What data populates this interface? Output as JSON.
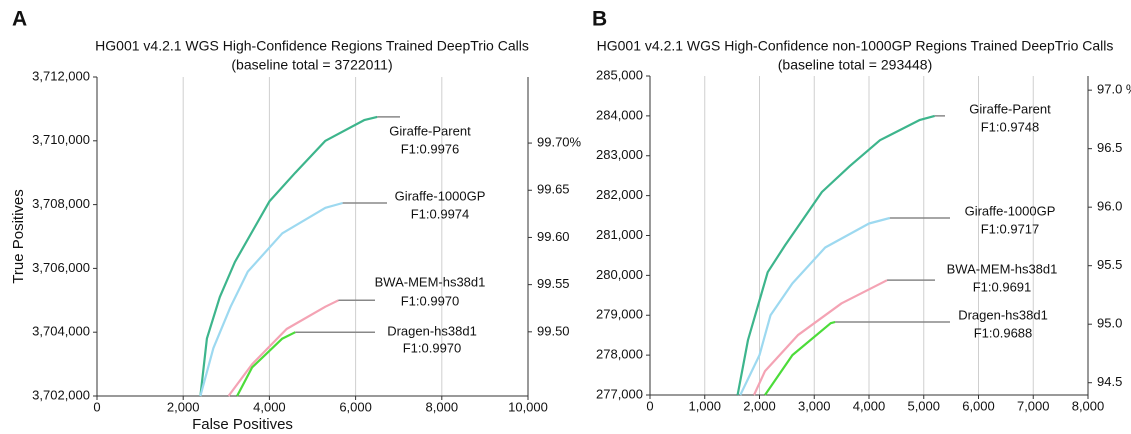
{
  "chart_data": [
    {
      "type": "line",
      "panel": "A",
      "title": "HG001 v4.2.1 WGS High-Confidence Regions Trained DeepTrio Calls",
      "subtitle": "(baseline total = 3722011)",
      "xlabel": "False Positives",
      "ylabel": "True Positives",
      "xlim": [
        0,
        10000
      ],
      "ylim": [
        3702000,
        3712000
      ],
      "y2lim": [
        99.432,
        99.77
      ],
      "xticks": [
        0,
        {
          "value": 2000,
          "label": "2,000"
        },
        {
          "value": 4000,
          "label": "4,000"
        },
        {
          "value": 6000,
          "label": "6,000"
        },
        {
          "value": 8000,
          "label": "8,000"
        },
        {
          "value": 10000,
          "label": "10,000"
        }
      ],
      "yticks": [
        {
          "value": 3702000,
          "label": "3,702,000"
        },
        {
          "value": 3704000,
          "label": "3,704,000"
        },
        {
          "value": 3706000,
          "label": "3,706,000"
        },
        {
          "value": 3708000,
          "label": "3,708,000"
        },
        {
          "value": 3710000,
          "label": "3,710,000"
        },
        {
          "value": 3712000,
          "label": "3,712,000"
        }
      ],
      "y2ticks": [
        {
          "value": 99.5,
          "label": "99.50"
        },
        {
          "value": 99.55,
          "label": "99.55"
        },
        {
          "value": 99.6,
          "label": "99.60"
        },
        {
          "value": 99.65,
          "label": "99.65"
        },
        {
          "value": 99.7,
          "label": "99.70%"
        }
      ],
      "grid": "x",
      "series": [
        {
          "name": "Giraffe-Parent",
          "label": "F1:0.9976",
          "color": "#3db58c",
          "x": [
            2400,
            2550,
            2850,
            3200,
            4000,
            4600,
            5300,
            6200,
            6500
          ],
          "y": [
            3702000,
            3703800,
            3705100,
            3706200,
            3708100,
            3709000,
            3710000,
            3710650,
            3710750
          ]
        },
        {
          "name": "Giraffe-1000GP",
          "label": "F1:0.9974",
          "color": "#9dd9f0",
          "x": [
            2400,
            2700,
            3100,
            3500,
            4300,
            5300,
            5700
          ],
          "y": [
            3702000,
            3703500,
            3704800,
            3705900,
            3707100,
            3707900,
            3708050
          ]
        },
        {
          "name": "BWA-MEM-hs38d1",
          "label": "F1:0.9970",
          "color": "#f4a3b4",
          "x": [
            3050,
            3600,
            4400,
            5300,
            5600
          ],
          "y": [
            3702000,
            3703000,
            3704100,
            3704800,
            3705000
          ]
        },
        {
          "name": "Dragen-hs38d1",
          "label": "F1:0.9970",
          "color": "#4cdc3a",
          "x": [
            3250,
            3600,
            4300,
            4600
          ],
          "y": [
            3702000,
            3702900,
            3703800,
            3704000
          ]
        }
      ]
    },
    {
      "type": "line",
      "panel": "B",
      "title": "HG001 v4.2.1 WGS High-Confidence non-1000GP Regions Trained DeepTrio Calls",
      "subtitle": "(baseline total = 293448)",
      "xlim": [
        0,
        8000
      ],
      "ylim": [
        277000,
        285000
      ],
      "y2lim": [
        94.395,
        97.121
      ],
      "xticks": [
        0,
        {
          "value": 1000,
          "label": "1,000"
        },
        {
          "value": 2000,
          "label": "2,000"
        },
        {
          "value": 3000,
          "label": "3,000"
        },
        {
          "value": 4000,
          "label": "4,000"
        },
        {
          "value": 5000,
          "label": "5,000"
        },
        {
          "value": 6000,
          "label": "6,000"
        },
        {
          "value": 7000,
          "label": "7,000"
        },
        {
          "value": 8000,
          "label": "8,000"
        }
      ],
      "yticks": [
        {
          "value": 277000,
          "label": "277,000"
        },
        {
          "value": 278000,
          "label": "278,000"
        },
        {
          "value": 279000,
          "label": "279,000"
        },
        {
          "value": 280000,
          "label": "280,000"
        },
        {
          "value": 281000,
          "label": "281,000"
        },
        {
          "value": 282000,
          "label": "282,000"
        },
        {
          "value": 283000,
          "label": "283,000"
        },
        {
          "value": 284000,
          "label": "284,000"
        },
        {
          "value": 285000,
          "label": "285,000"
        }
      ],
      "y2ticks": [
        94.5,
        {
          "value": 95,
          "label": "95.0"
        },
        95.5,
        {
          "value": 96,
          "label": "96.0"
        },
        96.5,
        {
          "value": 97,
          "label": "97.0 %"
        }
      ],
      "grid": "x",
      "series": [
        {
          "name": "Giraffe-Parent",
          "label": "F1:0.9748",
          "color": "#3db58c",
          "x": [
            1600,
            1790,
            2150,
            2470,
            3140,
            3650,
            4200,
            4930,
            5200
          ],
          "y": [
            277000,
            278380,
            280080,
            280760,
            282090,
            282740,
            283390,
            283900,
            284000
          ]
        },
        {
          "name": "Giraffe-1000GP",
          "label": "F1:0.9717",
          "color": "#9dd9f0",
          "x": [
            1650,
            2000,
            2200,
            2600,
            3200,
            4000,
            4380
          ],
          "y": [
            277000,
            278000,
            279000,
            279800,
            280700,
            281300,
            281440
          ]
        },
        {
          "name": "BWA-MEM-hs38d1",
          "label": "F1:0.9691",
          "color": "#f4a3b4",
          "x": [
            1900,
            2100,
            2700,
            3500,
            4330
          ],
          "y": [
            277000,
            277600,
            278500,
            279300,
            279880
          ]
        },
        {
          "name": "Dragen-hs38d1",
          "label": "F1:0.9688",
          "color": "#4cdc3a",
          "x": [
            2100,
            2600,
            3300,
            3380
          ],
          "y": [
            277000,
            278000,
            278800,
            278830
          ]
        }
      ]
    }
  ]
}
